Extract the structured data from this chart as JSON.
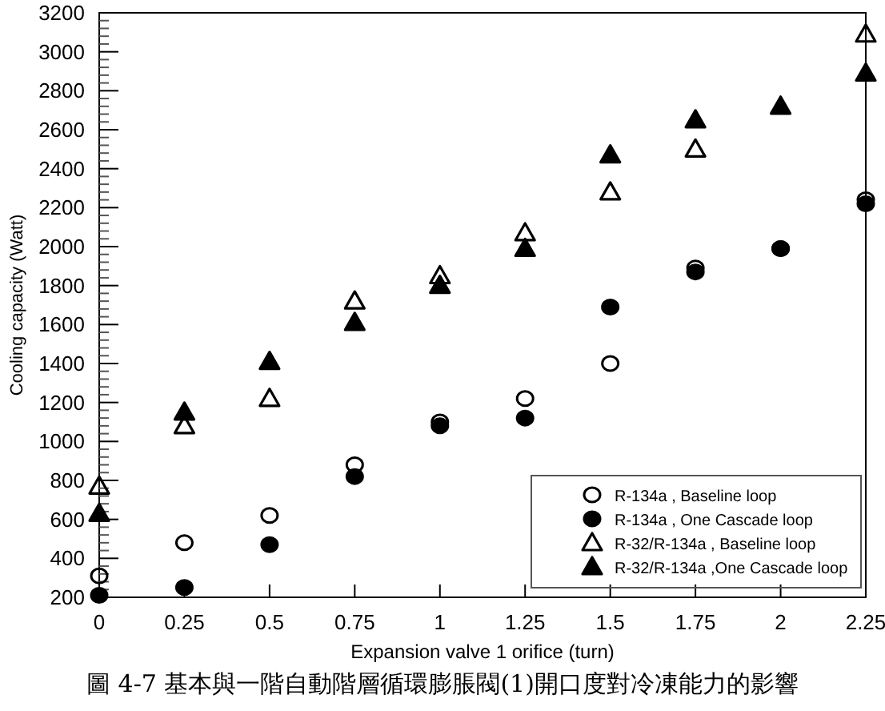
{
  "chart_data": {
    "type": "scatter",
    "xlabel": "Expansion valve 1 orifice (turn)",
    "ylabel": "Cooling capacity (Watt)",
    "x": [
      0,
      0.25,
      0.5,
      0.75,
      1,
      1.25,
      1.5,
      1.75,
      2,
      2.25
    ],
    "xlim": [
      0,
      2.25
    ],
    "xticks": [
      0,
      0.25,
      0.5,
      0.75,
      1,
      1.25,
      1.5,
      1.75,
      2,
      2.25
    ],
    "ylim": [
      200,
      3200
    ],
    "yticks": [
      200,
      400,
      600,
      800,
      1000,
      1200,
      1400,
      1600,
      1800,
      2000,
      2200,
      2400,
      2600,
      2800,
      3000,
      3200
    ],
    "grid": false,
    "legend": "bottom right",
    "series": [
      {
        "name": "R-134a , Baseline loop",
        "color": "#000000",
        "marker": "circle-open",
        "values": [
          310,
          480,
          620,
          880,
          1100,
          1220,
          1400,
          1890,
          1990,
          2240
        ]
      },
      {
        "name": "R-134a , One Cascade loop",
        "color": "#000000",
        "marker": "circle",
        "values": [
          210,
          250,
          470,
          820,
          1080,
          1120,
          1690,
          1870,
          1990,
          2220
        ]
      },
      {
        "name": "R-32/R-134a , Baseline loop",
        "color": "#000000",
        "marker": "triangle-open",
        "values": [
          770,
          1080,
          1220,
          1720,
          1850,
          2070,
          2280,
          2500,
          null,
          3090
        ]
      },
      {
        "name": "R-32/R-134a ,One Cascade loop",
        "color": "#000000",
        "marker": "triangle",
        "values": [
          630,
          1150,
          1410,
          1610,
          1800,
          1990,
          2470,
          2650,
          2720,
          2890
        ]
      }
    ],
    "annotations": [
      "圖 4-7 基本與一階自動階層循環膨脹閥(1)開口度對冷凍能力的影響"
    ]
  }
}
